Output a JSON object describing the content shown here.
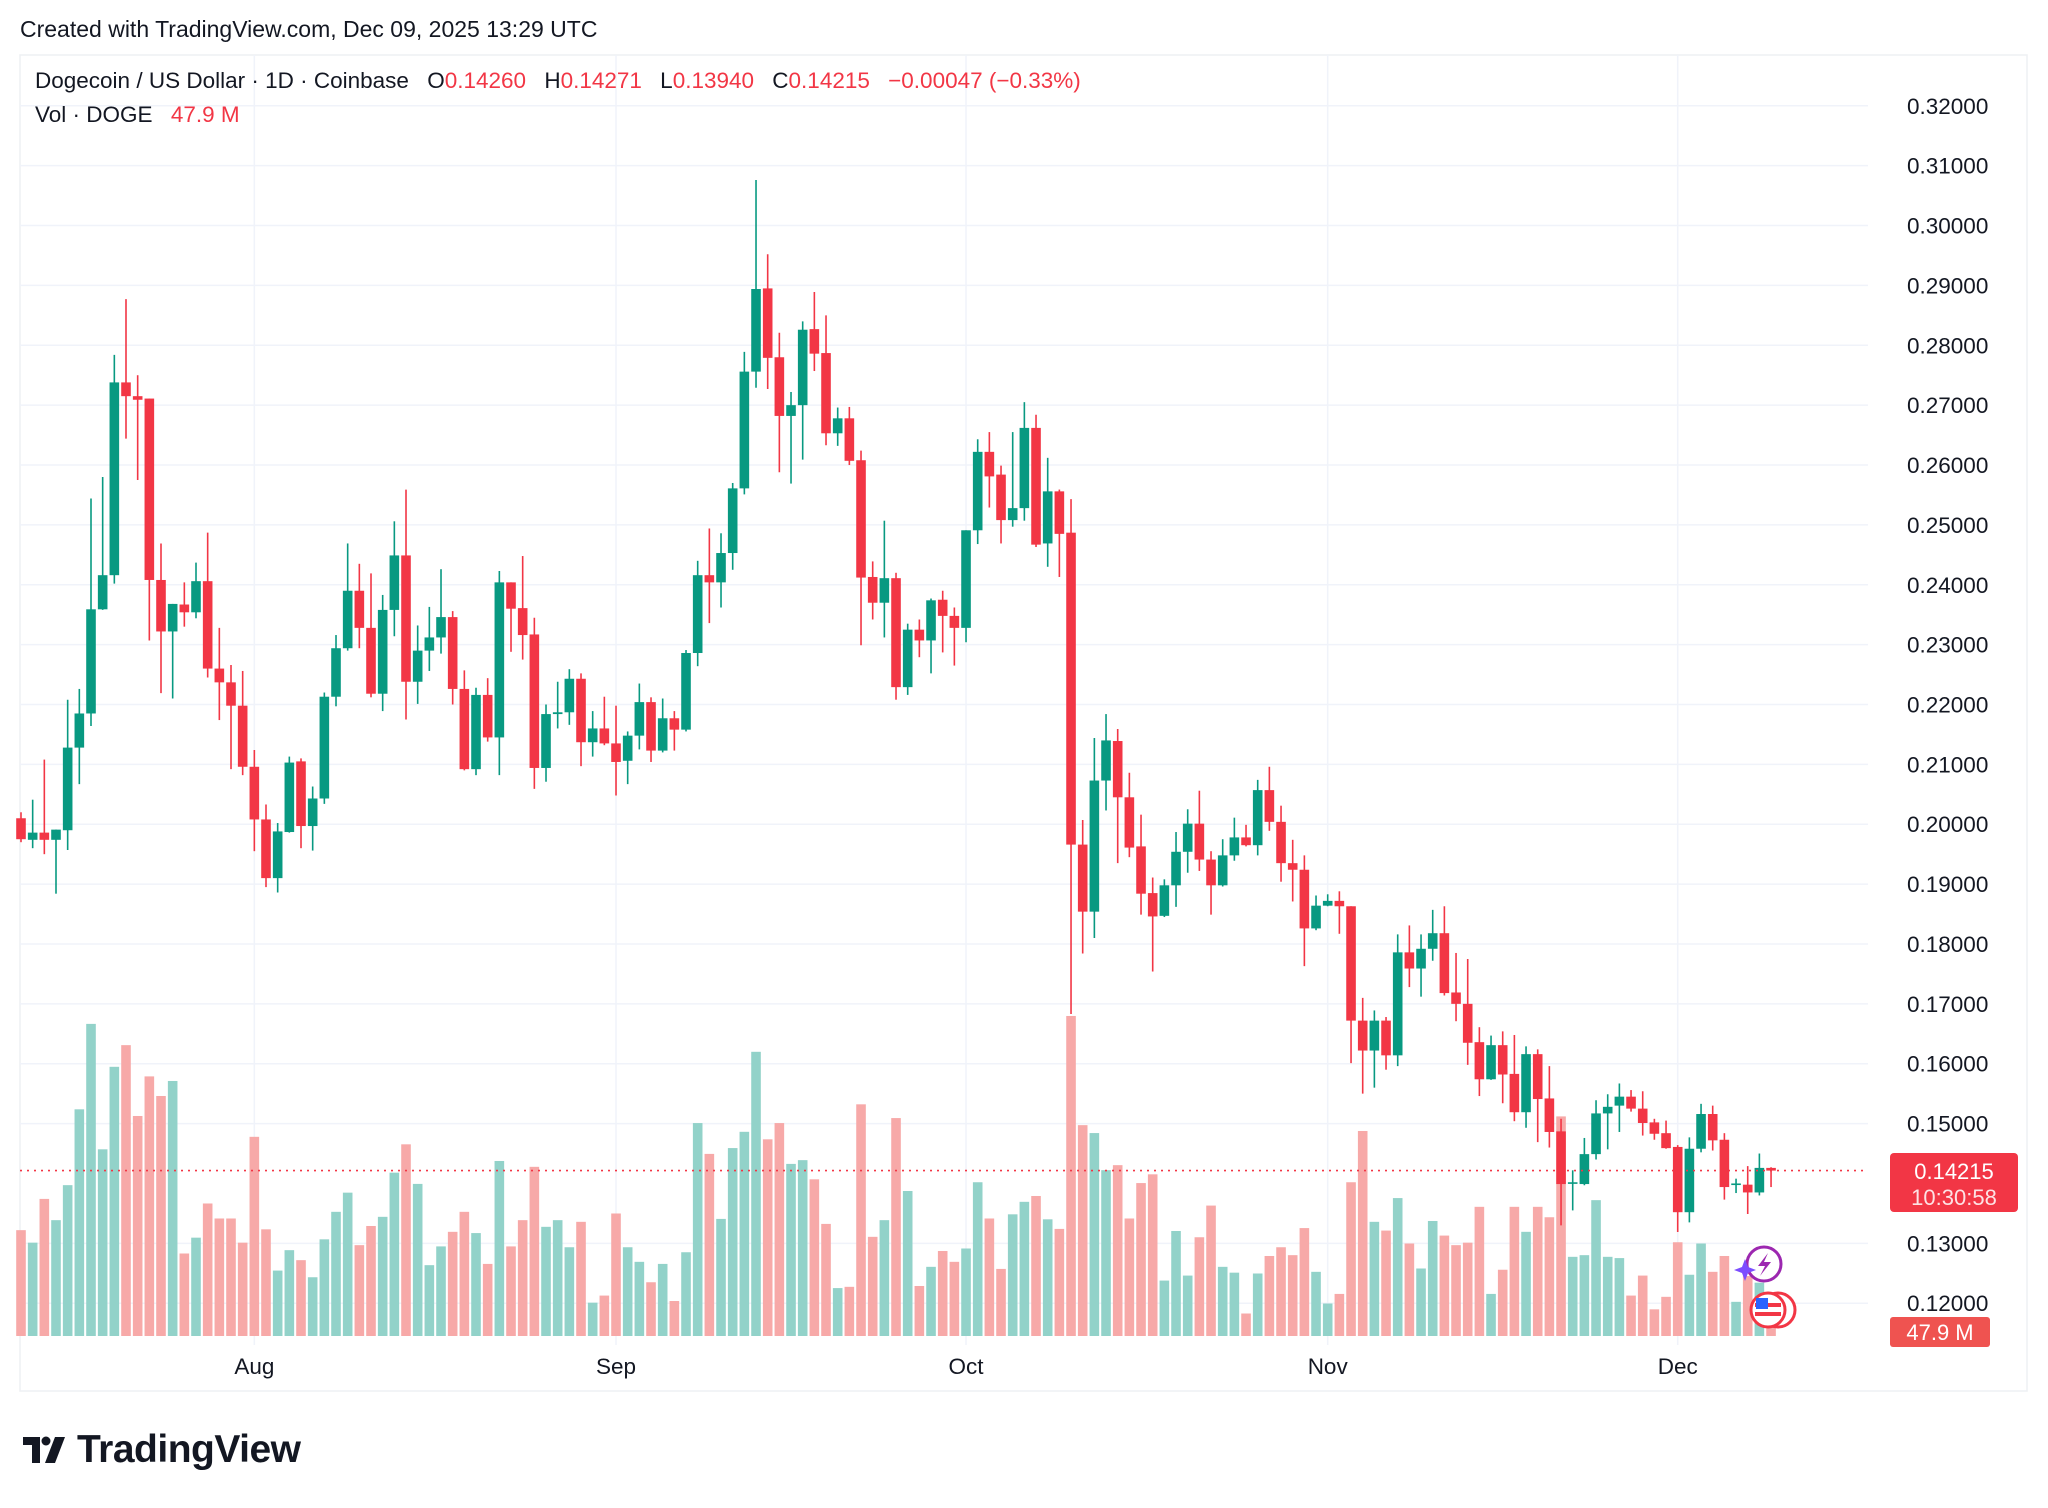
{
  "header": {
    "created": "Created with TradingView.com, Dec 09, 2025 13:29 UTC"
  },
  "legend": {
    "symbol": "Dogecoin / US Dollar · 1D · Coinbase",
    "o_label": "O",
    "o_value": "0.14260",
    "h_label": "H",
    "h_value": "0.14271",
    "l_label": "L",
    "l_value": "0.13940",
    "c_label": "C",
    "c_value": "0.14215",
    "change": "−0.00047 (−0.33%)",
    "vol_label": "Vol · DOGE",
    "vol_value": "47.9 M"
  },
  "price_tag": {
    "price": "0.14215",
    "countdown": "10:30:58"
  },
  "volume_tag": {
    "value": "47.9 M"
  },
  "logo": {
    "text": "TradingView"
  },
  "colors": {
    "up": "#089981",
    "down": "#F23645",
    "vol_up": "#92d2c9",
    "vol_down": "#f7a9a8",
    "grid": "#f0f3fa"
  },
  "chart_data": {
    "type": "candlestick",
    "title": "Dogecoin / US Dollar · 1D · Coinbase",
    "yscale": "linear",
    "ylim": [
      0.12,
      0.32
    ],
    "grid": true,
    "y_ticks": [
      "0.32000",
      "0.31000",
      "0.30000",
      "0.29000",
      "0.28000",
      "0.27000",
      "0.26000",
      "0.25000",
      "0.24000",
      "0.23000",
      "0.22000",
      "0.21000",
      "0.20000",
      "0.19000",
      "0.18000",
      "0.17000",
      "0.16000",
      "0.15000",
      "0.13000",
      "0.12000"
    ],
    "time_ticks": [
      {
        "label": "Aug",
        "date": "2025-08-01"
      },
      {
        "label": "Sep",
        "date": "2025-09-01"
      },
      {
        "label": "Oct",
        "date": "2025-10-01"
      },
      {
        "label": "Nov",
        "date": "2025-11-01"
      },
      {
        "label": "Dec",
        "date": "2025-12-01"
      }
    ],
    "columns": [
      "date",
      "open",
      "high",
      "low",
      "close",
      "volume_M"
    ],
    "candles": [
      [
        "2025-07-12",
        0.201,
        0.202,
        0.197,
        0.1975,
        254
      ],
      [
        "2025-07-13",
        0.1974,
        0.2041,
        0.196,
        0.1986,
        224
      ],
      [
        "2025-07-14",
        0.1986,
        0.2108,
        0.195,
        0.1974,
        329
      ],
      [
        "2025-07-15",
        0.1974,
        0.1991,
        0.1884,
        0.1991,
        278
      ],
      [
        "2025-07-16",
        0.199,
        0.2208,
        0.1957,
        0.2128,
        362
      ],
      [
        "2025-07-17",
        0.2128,
        0.2226,
        0.2067,
        0.2185,
        544
      ],
      [
        "2025-07-18",
        0.2185,
        0.2544,
        0.2164,
        0.2359,
        749
      ],
      [
        "2025-07-19",
        0.2359,
        0.258,
        0.2358,
        0.2416,
        448
      ],
      [
        "2025-07-20",
        0.2416,
        0.2784,
        0.2402,
        0.2738,
        646
      ],
      [
        "2025-07-21",
        0.2738,
        0.2877,
        0.2644,
        0.2715,
        698
      ],
      [
        "2025-07-22",
        0.2715,
        0.275,
        0.2575,
        0.2709,
        528
      ],
      [
        "2025-07-23",
        0.2711,
        0.2711,
        0.2307,
        0.2408,
        623
      ],
      [
        "2025-07-24",
        0.2408,
        0.2469,
        0.2219,
        0.2322,
        576
      ],
      [
        "2025-07-25",
        0.2322,
        0.2368,
        0.221,
        0.2368,
        612
      ],
      [
        "2025-07-26",
        0.2367,
        0.2404,
        0.233,
        0.2354,
        198
      ],
      [
        "2025-07-27",
        0.2354,
        0.2437,
        0.2344,
        0.2406,
        236
      ],
      [
        "2025-07-28",
        0.2406,
        0.2487,
        0.2245,
        0.226,
        318
      ],
      [
        "2025-07-29",
        0.226,
        0.2328,
        0.2174,
        0.2237,
        282
      ],
      [
        "2025-07-30",
        0.2237,
        0.2266,
        0.2092,
        0.2198,
        282
      ],
      [
        "2025-07-31",
        0.2198,
        0.2256,
        0.2082,
        0.2096,
        224
      ],
      [
        "2025-08-01",
        0.2096,
        0.2124,
        0.1955,
        0.2008,
        478
      ],
      [
        "2025-08-02",
        0.2008,
        0.2033,
        0.1895,
        0.191,
        256
      ],
      [
        "2025-08-03",
        0.191,
        0.2002,
        0.1886,
        0.1988,
        157
      ],
      [
        "2025-08-04",
        0.1987,
        0.2113,
        0.1986,
        0.2103,
        206
      ],
      [
        "2025-08-05",
        0.2105,
        0.211,
        0.196,
        0.1997,
        182
      ],
      [
        "2025-08-06",
        0.1997,
        0.2063,
        0.1956,
        0.2043,
        141
      ],
      [
        "2025-08-07",
        0.2043,
        0.222,
        0.2034,
        0.2213,
        232
      ],
      [
        "2025-08-08",
        0.2213,
        0.2316,
        0.2197,
        0.2294,
        298
      ],
      [
        "2025-08-09",
        0.2294,
        0.2469,
        0.229,
        0.239,
        344
      ],
      [
        "2025-08-10",
        0.239,
        0.2435,
        0.2294,
        0.2328,
        218
      ],
      [
        "2025-08-11",
        0.2328,
        0.2419,
        0.2212,
        0.2218,
        264
      ],
      [
        "2025-08-12",
        0.2218,
        0.2383,
        0.2189,
        0.2358,
        286
      ],
      [
        "2025-08-13",
        0.2358,
        0.2506,
        0.2314,
        0.2449,
        392
      ],
      [
        "2025-08-14",
        0.2449,
        0.2559,
        0.2175,
        0.2238,
        460
      ],
      [
        "2025-08-15",
        0.2238,
        0.2332,
        0.2201,
        0.229,
        365
      ],
      [
        "2025-08-16",
        0.229,
        0.2363,
        0.2256,
        0.2312,
        170
      ],
      [
        "2025-08-17",
        0.2312,
        0.2426,
        0.2285,
        0.2346,
        215
      ],
      [
        "2025-08-18",
        0.2346,
        0.2356,
        0.22,
        0.2226,
        250
      ],
      [
        "2025-08-19",
        0.2226,
        0.2257,
        0.209,
        0.2092,
        298
      ],
      [
        "2025-08-20",
        0.2092,
        0.2228,
        0.2082,
        0.2216,
        247
      ],
      [
        "2025-08-21",
        0.2216,
        0.2244,
        0.2138,
        0.2145,
        173
      ],
      [
        "2025-08-22",
        0.2145,
        0.2423,
        0.2082,
        0.2404,
        420
      ],
      [
        "2025-08-23",
        0.2404,
        0.2404,
        0.2288,
        0.236,
        215
      ],
      [
        "2025-08-24",
        0.2361,
        0.2448,
        0.2275,
        0.2316,
        278
      ],
      [
        "2025-08-25",
        0.2317,
        0.2345,
        0.2059,
        0.2094,
        406
      ],
      [
        "2025-08-26",
        0.2094,
        0.22,
        0.2071,
        0.2184,
        262
      ],
      [
        "2025-08-27",
        0.2184,
        0.2238,
        0.216,
        0.2187,
        278
      ],
      [
        "2025-08-28",
        0.2187,
        0.2259,
        0.2166,
        0.2243,
        213
      ],
      [
        "2025-08-29",
        0.2243,
        0.2252,
        0.2097,
        0.2137,
        274
      ],
      [
        "2025-08-30",
        0.2137,
        0.2189,
        0.2113,
        0.216,
        80
      ],
      [
        "2025-08-31",
        0.216,
        0.2213,
        0.2132,
        0.2135,
        97
      ],
      [
        "2025-09-01",
        0.2135,
        0.2198,
        0.2048,
        0.2104,
        294
      ],
      [
        "2025-09-02",
        0.2106,
        0.2155,
        0.2067,
        0.2148,
        213
      ],
      [
        "2025-09-03",
        0.2148,
        0.2235,
        0.2125,
        0.2204,
        178
      ],
      [
        "2025-09-04",
        0.2204,
        0.2212,
        0.2104,
        0.2123,
        129
      ],
      [
        "2025-09-05",
        0.2123,
        0.221,
        0.212,
        0.2177,
        173
      ],
      [
        "2025-09-06",
        0.2177,
        0.2189,
        0.2123,
        0.2158,
        84
      ],
      [
        "2025-09-07",
        0.2158,
        0.2291,
        0.2155,
        0.2286,
        201
      ],
      [
        "2025-09-08",
        0.2286,
        0.244,
        0.2264,
        0.2416,
        511
      ],
      [
        "2025-09-09",
        0.2416,
        0.2494,
        0.2336,
        0.2404,
        437
      ],
      [
        "2025-09-10",
        0.2404,
        0.2486,
        0.2362,
        0.2453,
        281
      ],
      [
        "2025-09-11",
        0.2453,
        0.257,
        0.2425,
        0.2561,
        451
      ],
      [
        "2025-09-12",
        0.2561,
        0.2789,
        0.2551,
        0.2756,
        490
      ],
      [
        "2025-09-13",
        0.2756,
        0.3076,
        0.2729,
        0.2894,
        682
      ],
      [
        "2025-09-14",
        0.2895,
        0.2952,
        0.2727,
        0.2779,
        472
      ],
      [
        "2025-09-15",
        0.278,
        0.2821,
        0.2588,
        0.2682,
        511
      ],
      [
        "2025-09-16",
        0.2682,
        0.2722,
        0.2569,
        0.27,
        413
      ],
      [
        "2025-09-17",
        0.27,
        0.284,
        0.2609,
        0.2826,
        422
      ],
      [
        "2025-09-18",
        0.2827,
        0.2889,
        0.2757,
        0.2786,
        376
      ],
      [
        "2025-09-19",
        0.2787,
        0.285,
        0.2633,
        0.2653,
        269
      ],
      [
        "2025-09-20",
        0.2653,
        0.2696,
        0.2632,
        0.2678,
        115
      ],
      [
        "2025-09-21",
        0.2678,
        0.2697,
        0.26,
        0.2607,
        118
      ],
      [
        "2025-09-22",
        0.2608,
        0.2624,
        0.2299,
        0.2412,
        556
      ],
      [
        "2025-09-23",
        0.2413,
        0.2439,
        0.2342,
        0.237,
        238
      ],
      [
        "2025-09-24",
        0.237,
        0.2507,
        0.2312,
        0.2411,
        278
      ],
      [
        "2025-09-25",
        0.2411,
        0.242,
        0.2208,
        0.2229,
        523
      ],
      [
        "2025-09-26",
        0.2229,
        0.2335,
        0.2216,
        0.2325,
        348
      ],
      [
        "2025-09-27",
        0.2325,
        0.2342,
        0.2279,
        0.2307,
        120
      ],
      [
        "2025-09-28",
        0.2307,
        0.2377,
        0.2252,
        0.2374,
        166
      ],
      [
        "2025-09-29",
        0.2375,
        0.239,
        0.2287,
        0.2348,
        204
      ],
      [
        "2025-09-30",
        0.2348,
        0.2362,
        0.2265,
        0.2328,
        178
      ],
      [
        "2025-10-01",
        0.2328,
        0.2491,
        0.2304,
        0.2491,
        210
      ],
      [
        "2025-10-02",
        0.2491,
        0.2643,
        0.2468,
        0.2622,
        369
      ],
      [
        "2025-10-03",
        0.2622,
        0.2655,
        0.2529,
        0.2581,
        282
      ],
      [
        "2025-10-04",
        0.2584,
        0.2599,
        0.2469,
        0.2508,
        161
      ],
      [
        "2025-10-05",
        0.2508,
        0.2655,
        0.2497,
        0.2528,
        292
      ],
      [
        "2025-10-06",
        0.2528,
        0.2705,
        0.2507,
        0.2662,
        322
      ],
      [
        "2025-10-07",
        0.2662,
        0.2684,
        0.2463,
        0.2467,
        336
      ],
      [
        "2025-10-08",
        0.2469,
        0.2612,
        0.243,
        0.2556,
        280
      ],
      [
        "2025-10-09",
        0.2556,
        0.2559,
        0.2413,
        0.2485,
        257
      ],
      [
        "2025-10-10",
        0.2487,
        0.2543,
        0.1683,
        0.1966,
        768
      ],
      [
        "2025-10-11",
        0.1966,
        0.2007,
        0.1784,
        0.1854,
        506
      ],
      [
        "2025-10-12",
        0.1854,
        0.2144,
        0.181,
        0.2073,
        487
      ],
      [
        "2025-10-13",
        0.2073,
        0.2184,
        0.2023,
        0.214,
        398
      ],
      [
        "2025-10-14",
        0.2139,
        0.2159,
        0.1935,
        0.2045,
        410
      ],
      [
        "2025-10-15",
        0.2045,
        0.2086,
        0.1945,
        0.1961,
        282
      ],
      [
        "2025-10-16",
        0.1963,
        0.2016,
        0.1849,
        0.1884,
        367
      ],
      [
        "2025-10-17",
        0.1885,
        0.1911,
        0.1754,
        0.1846,
        388
      ],
      [
        "2025-10-18",
        0.1847,
        0.1908,
        0.1845,
        0.1898,
        133
      ],
      [
        "2025-10-19",
        0.1898,
        0.1987,
        0.1862,
        0.1954,
        252
      ],
      [
        "2025-10-20",
        0.1954,
        0.2025,
        0.1919,
        0.2001,
        145
      ],
      [
        "2025-10-21",
        0.2001,
        0.2056,
        0.1922,
        0.1941,
        237
      ],
      [
        "2025-10-22",
        0.1941,
        0.1955,
        0.1849,
        0.1898,
        313
      ],
      [
        "2025-10-23",
        0.1898,
        0.1975,
        0.1896,
        0.1948,
        166
      ],
      [
        "2025-10-24",
        0.1948,
        0.2011,
        0.1939,
        0.1978,
        152
      ],
      [
        "2025-10-25",
        0.1978,
        0.1999,
        0.1963,
        0.1965,
        54
      ],
      [
        "2025-10-26",
        0.1965,
        0.2074,
        0.1948,
        0.2057,
        150
      ],
      [
        "2025-10-27",
        0.2057,
        0.2096,
        0.1989,
        0.2004,
        192
      ],
      [
        "2025-10-28",
        0.2004,
        0.2031,
        0.1904,
        0.1935,
        213
      ],
      [
        "2025-10-29",
        0.1935,
        0.1974,
        0.1871,
        0.1924,
        194
      ],
      [
        "2025-10-30",
        0.1924,
        0.1948,
        0.1763,
        0.1826,
        259
      ],
      [
        "2025-10-31",
        0.1826,
        0.1881,
        0.1823,
        0.1864,
        154
      ],
      [
        "2025-11-01",
        0.1864,
        0.1883,
        0.1863,
        0.1872,
        78
      ],
      [
        "2025-11-02",
        0.1872,
        0.1888,
        0.1817,
        0.1863,
        101
      ],
      [
        "2025-11-03",
        0.1863,
        0.1863,
        0.1601,
        0.1672,
        369
      ],
      [
        "2025-11-04",
        0.1672,
        0.171,
        0.155,
        0.1622,
        492
      ],
      [
        "2025-11-05",
        0.1622,
        0.1689,
        0.156,
        0.1672,
        274
      ],
      [
        "2025-11-06",
        0.1672,
        0.1678,
        0.159,
        0.1614,
        253
      ],
      [
        "2025-11-07",
        0.1614,
        0.1816,
        0.1596,
        0.1786,
        331
      ],
      [
        "2025-11-08",
        0.1786,
        0.1831,
        0.1728,
        0.1759,
        222
      ],
      [
        "2025-11-09",
        0.1759,
        0.1816,
        0.1712,
        0.1792,
        162
      ],
      [
        "2025-11-10",
        0.1792,
        0.1857,
        0.1772,
        0.1818,
        276
      ],
      [
        "2025-11-11",
        0.1818,
        0.1863,
        0.1714,
        0.1718,
        241
      ],
      [
        "2025-11-12",
        0.1719,
        0.1785,
        0.1671,
        0.17,
        218
      ],
      [
        "2025-11-13",
        0.17,
        0.1775,
        0.1598,
        0.1635,
        224
      ],
      [
        "2025-11-14",
        0.1636,
        0.1661,
        0.1546,
        0.1574,
        310
      ],
      [
        "2025-11-15",
        0.1574,
        0.1647,
        0.1573,
        0.1631,
        101
      ],
      [
        "2025-11-16",
        0.1631,
        0.1654,
        0.1534,
        0.1582,
        159
      ],
      [
        "2025-11-17",
        0.1583,
        0.1648,
        0.1504,
        0.1519,
        310
      ],
      [
        "2025-11-18",
        0.1519,
        0.1629,
        0.1493,
        0.1616,
        250
      ],
      [
        "2025-11-19",
        0.1616,
        0.1624,
        0.1469,
        0.1541,
        310
      ],
      [
        "2025-11-20",
        0.1542,
        0.1596,
        0.146,
        0.1486,
        285
      ],
      [
        "2025-11-21",
        0.1487,
        0.1508,
        0.133,
        0.1399,
        527
      ],
      [
        "2025-11-22",
        0.1401,
        0.1422,
        0.1355,
        0.1402,
        190
      ],
      [
        "2025-11-23",
        0.1399,
        0.1476,
        0.1397,
        0.1449,
        194
      ],
      [
        "2025-11-24",
        0.1449,
        0.1539,
        0.144,
        0.1517,
        326
      ],
      [
        "2025-11-25",
        0.1517,
        0.1549,
        0.1457,
        0.1528,
        190
      ],
      [
        "2025-11-26",
        0.153,
        0.1567,
        0.1486,
        0.1545,
        187
      ],
      [
        "2025-11-27",
        0.1545,
        0.1556,
        0.152,
        0.1525,
        97
      ],
      [
        "2025-11-28",
        0.1525,
        0.1554,
        0.148,
        0.1501,
        145
      ],
      [
        "2025-11-29",
        0.1502,
        0.1508,
        0.1473,
        0.1483,
        64
      ],
      [
        "2025-11-30",
        0.1484,
        0.1505,
        0.1458,
        0.1459,
        94
      ],
      [
        "2025-12-01",
        0.1461,
        0.1464,
        0.1319,
        0.1352,
        225
      ],
      [
        "2025-12-02",
        0.1352,
        0.1477,
        0.1335,
        0.1458,
        147
      ],
      [
        "2025-12-03",
        0.1458,
        0.1533,
        0.1452,
        0.1516,
        222
      ],
      [
        "2025-12-04",
        0.1516,
        0.153,
        0.1455,
        0.1472,
        154
      ],
      [
        "2025-12-05",
        0.1473,
        0.1484,
        0.1373,
        0.1394,
        192
      ],
      [
        "2025-12-06",
        0.1399,
        0.1408,
        0.1384,
        0.14,
        82
      ],
      [
        "2025-12-07",
        0.1398,
        0.1429,
        0.1349,
        0.1385,
        144
      ],
      [
        "2025-12-08",
        0.1385,
        0.145,
        0.138,
        0.1426,
        128
      ],
      [
        "2025-12-09",
        0.1426,
        0.14271,
        0.1394,
        0.14215,
        47.9
      ]
    ],
    "last_price_line": 0.14215
  }
}
